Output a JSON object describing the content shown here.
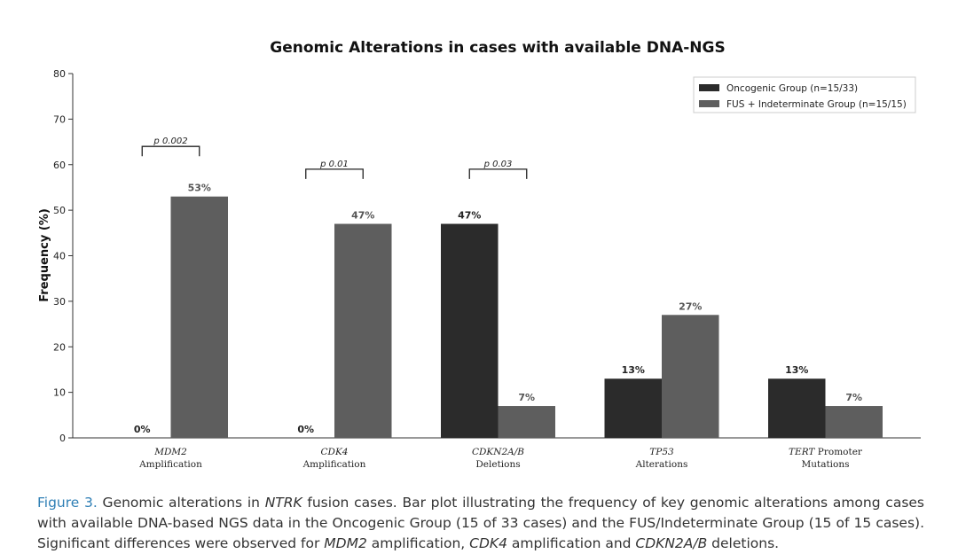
{
  "chart_data": {
    "type": "bar",
    "title": "Genomic Alterations in cases with available DNA-NGS",
    "ylabel": "Frequency (%)",
    "xlabel": "",
    "ylim": [
      0,
      80
    ],
    "yticks": [
      0,
      10,
      20,
      30,
      40,
      50,
      60,
      70,
      80
    ],
    "grid": false,
    "legend_position": "top-right",
    "categories": [
      {
        "italic": "MDM2",
        "rest": "Amplification"
      },
      {
        "italic": "CDK4",
        "rest": "Amplification"
      },
      {
        "italic": "CDKN2A/B",
        "rest": "Deletions"
      },
      {
        "italic": "TP53",
        "rest": "Alterations"
      },
      {
        "italic": "TERT",
        "italic_suffix": " Promoter",
        "rest": "Mutations"
      }
    ],
    "series": [
      {
        "name": "Oncogenic Group (n=15/33)",
        "color": "#2b2b2b",
        "values": [
          0,
          0,
          47,
          13,
          13
        ],
        "labels": [
          "0%",
          "0%",
          "47%",
          "13%",
          "13%"
        ]
      },
      {
        "name": "FUS + Indeterminate Group (n=15/15)",
        "color": "#5e5e5e",
        "values": [
          53,
          47,
          7,
          27,
          7
        ],
        "labels": [
          "53%",
          "47%",
          "7%",
          "27%",
          "7%"
        ]
      }
    ],
    "annotations": [
      {
        "category_index": 0,
        "text": "p 0.002",
        "y": 64
      },
      {
        "category_index": 1,
        "text": "p 0.01",
        "y": 59
      },
      {
        "category_index": 2,
        "text": "p 0.03",
        "y": 59
      }
    ]
  },
  "caption": {
    "figure_label": "Figure 3.",
    "part1": " Genomic alterations in ",
    "italic1": "NTRK",
    "part2": " fusion cases. Bar plot illustrating the frequency of key genomic alterations among cases with available DNA-based NGS data in the Oncogenic Group (15 of 33 cases) and the FUS/Indeterminate Group (15 of 15 cases). Significant differences were observed for ",
    "italic2": "MDM2",
    "part3": " amplification, ",
    "italic3": "CDK4",
    "part4": " amplification and ",
    "italic4": "CDKN2A/B",
    "part5": " deletions."
  }
}
